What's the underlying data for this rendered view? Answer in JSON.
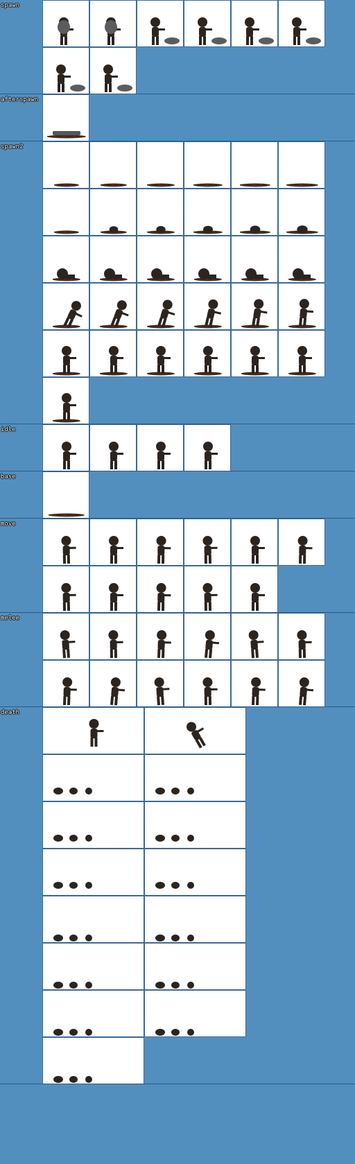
{
  "background_color": "#528fbf",
  "frame_color": "#ffffff",
  "sprite_color": "#2c241f",
  "sections": [
    {
      "id": "spawn",
      "label": "spawn",
      "frames": 8,
      "cols": 6,
      "frame_w": 68,
      "frame_h": 68,
      "pose": "emerge"
    },
    {
      "id": "afterspawn",
      "label": "afterspawn",
      "frames": 1,
      "cols": 6,
      "frame_w": 68,
      "frame_h": 68,
      "pose": "pile"
    },
    {
      "id": "spawn2",
      "label": "spawn2",
      "frames": 31,
      "cols": 6,
      "frame_w": 68,
      "frame_h": 68,
      "pose": "rise"
    },
    {
      "id": "idle",
      "label": "idle",
      "frames": 4,
      "cols": 6,
      "frame_w": 68,
      "frame_h": 68,
      "pose": "stand"
    },
    {
      "id": "base",
      "label": "base",
      "frames": 1,
      "cols": 6,
      "frame_w": 68,
      "frame_h": 68,
      "pose": "puddle"
    },
    {
      "id": "move",
      "label": "move",
      "frames": 11,
      "cols": 6,
      "frame_w": 68,
      "frame_h": 68,
      "pose": "walk"
    },
    {
      "id": "melee",
      "label": "melee",
      "frames": 12,
      "cols": 6,
      "frame_w": 68,
      "frame_h": 68,
      "pose": "attack"
    },
    {
      "id": "death",
      "label": "death",
      "frames": 15,
      "cols": 2,
      "frame_w": 147,
      "frame_h": 68,
      "pose": "collapse"
    }
  ]
}
